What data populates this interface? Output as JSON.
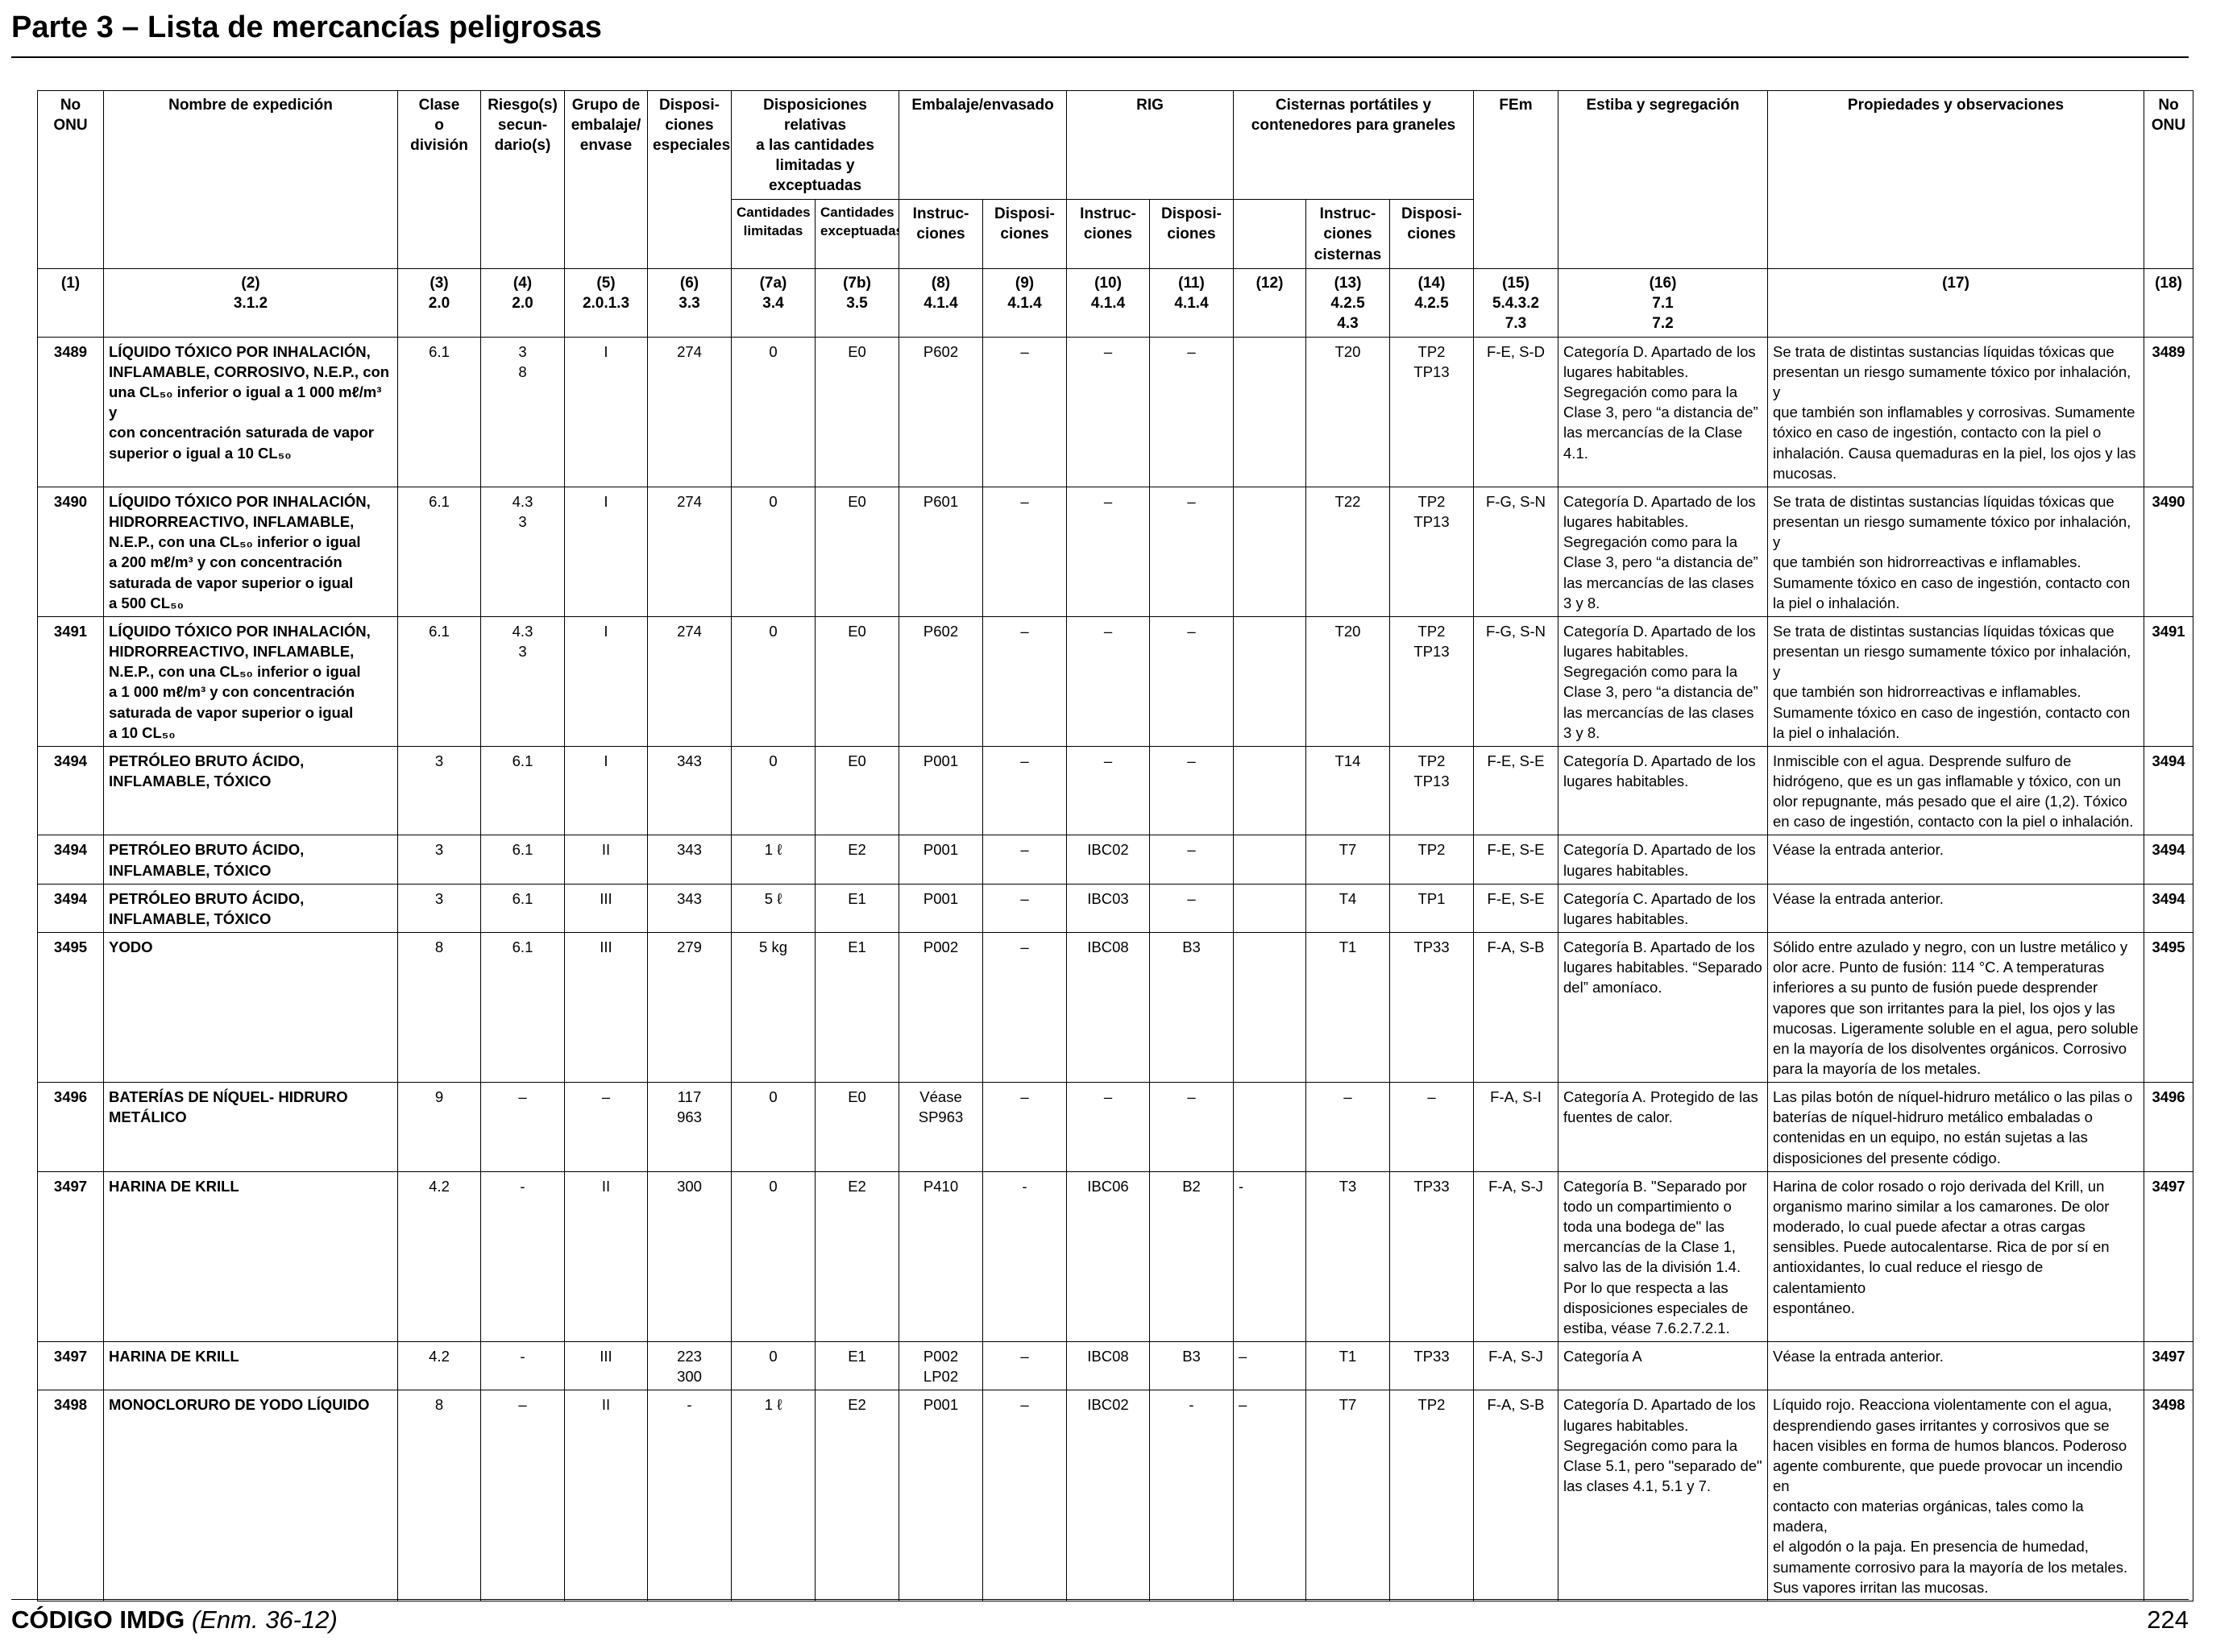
{
  "page": {
    "title": "Parte 3 – Lista de mercancías peligrosas"
  },
  "header": {
    "onu": "No\nONU",
    "name": "Nombre de expedición",
    "class": "Clase\no\ndivisión",
    "subrisk": "Riesgo(s)\nsecun-\ndario(s)",
    "pg": "Grupo de\nembalaje/\nenvase",
    "sp": "Disposi-\nciones\nespeciales",
    "limited": "Disposiciones relativas\na las cantidades\nlimitadas y exceptuadas",
    "limited_sub_a": "Cantidades\nlimitadas",
    "limited_sub_b": "Cantidades\nexceptuadas",
    "packing": "Embalaje/envasado",
    "packing_sub_a": "Instruc-\nciones",
    "packing_sub_b": "Disposi-\nciones",
    "rig": "RIG",
    "rig_sub_a": "Instruc-\nciones",
    "rig_sub_b": "Disposi-\nciones",
    "tanks": "Cisternas portátiles y\ncontenedores para graneles",
    "tanks_sub_a": "Instruc-\nciones\ncisternas",
    "tanks_sub_b": "Disposi-\nciones",
    "ems": "FEm",
    "stowage": "Estiba y segregación",
    "properties": "Propiedades y observaciones",
    "onu_right": "No\nONU"
  },
  "refs": [
    "(1)",
    "(2)\n3.1.2",
    "(3)\n2.0",
    "(4)\n2.0",
    "(5)\n2.0.1.3",
    "(6)\n3.3",
    "(7a)\n3.4",
    "(7b)\n3.5",
    "(8)\n4.1.4",
    "(9)\n4.1.4",
    "(10)\n4.1.4",
    "(11)\n4.1.4",
    "(12)",
    "(13)\n4.2.5\n4.3",
    "(14)\n4.2.5",
    "(15)\n5.4.3.2\n7.3",
    "(16)\n7.1\n7.2",
    "(17)",
    "(18)"
  ],
  "rows": [
    {
      "onu": "3489",
      "name": "LÍQUIDO TÓXICO POR INHALACIÓN,\nINFLAMABLE, CORROSIVO, N.E.P., con\nuna CL₅₀ inferior o igual a 1 000 mℓ/m³ y\ncon concentración saturada de vapor\nsuperior o igual a 10 CL₅₀",
      "class": "6.1",
      "subrisk": "3\n8",
      "pg": "I",
      "sp": "274",
      "lq": "0",
      "eq": "E0",
      "pi": "P602",
      "pp": "–",
      "ibc": "–",
      "ibcp": "–",
      "c12": "",
      "tank": "T20",
      "tankp": "TP2\nTP13",
      "ems": "F-E, S-D",
      "stowage": "Categoría D. Apartado de los\nlugares habitables.\nSegregación como para la\nClase 3, pero “a distancia de”\nlas mercancías de la Clase\n4.1.",
      "props": "Se trata de distintas sustancias líquidas tóxicas que\npresentan un riesgo sumamente tóxico por inhalación, y\nque también son inflamables y corrosivas. Sumamente\ntóxico en caso de ingestión, contacto con la piel o\ninhalación. Causa quemaduras en la piel, los ojos y las\nmucosas.",
      "onu_r": "3489"
    },
    {
      "onu": "3490",
      "name": "LÍQUIDO TÓXICO POR INHALACIÓN,\nHIDRORREACTIVO, INFLAMABLE,\nN.E.P., con una CL₅₀ inferior o igual\na 200 mℓ/m³ y con concentración\nsaturada de vapor superior o igual\na 500 CL₅₀",
      "class": "6.1",
      "subrisk": "4.3\n3",
      "pg": "I",
      "sp": "274",
      "lq": "0",
      "eq": "E0",
      "pi": "P601",
      "pp": "–",
      "ibc": "–",
      "ibcp": "–",
      "c12": "",
      "tank": "T22",
      "tankp": "TP2\nTP13",
      "ems": "F-G, S-N",
      "stowage": "Categoría D. Apartado de los\nlugares habitables.\nSegregación como para la\nClase 3, pero “a distancia de”\nlas mercancías de las clases\n3 y 8.",
      "props": "Se trata de distintas sustancias líquidas tóxicas que\npresentan un riesgo sumamente tóxico por inhalación, y\nque también son hidrorreactivas e inflamables.\nSumamente tóxico en caso de ingestión, contacto con\nla piel o inhalación.",
      "onu_r": "3490"
    },
    {
      "onu": "3491",
      "name": "LÍQUIDO TÓXICO POR INHALACIÓN,\nHIDRORREACTIVO, INFLAMABLE,\nN.E.P., con una CL₅₀ inferior o igual\na 1 000 mℓ/m³ y con concentración\nsaturada de vapor superior o igual\na 10 CL₅₀",
      "class": "6.1",
      "subrisk": "4.3\n3",
      "pg": "I",
      "sp": "274",
      "lq": "0",
      "eq": "E0",
      "pi": "P602",
      "pp": "–",
      "ibc": "–",
      "ibcp": "–",
      "c12": "",
      "tank": "T20",
      "tankp": "TP2\nTP13",
      "ems": "F-G, S-N",
      "stowage": "Categoría D. Apartado de los\nlugares habitables.\nSegregación como para la\nClase 3, pero “a distancia de”\nlas mercancías de las clases\n3 y 8.",
      "props": "Se trata de distintas sustancias líquidas tóxicas que\npresentan un riesgo sumamente tóxico por inhalación, y\nque también son hidrorreactivas e inflamables.\nSumamente tóxico en caso de ingestión, contacto con\nla piel o inhalación.",
      "onu_r": "3491"
    },
    {
      "onu": "3494",
      "name": "PETRÓLEO BRUTO ÁCIDO,\nINFLAMABLE, TÓXICO",
      "class": "3",
      "subrisk": "6.1",
      "pg": "I",
      "sp": "343",
      "lq": "0",
      "eq": "E0",
      "pi": "P001",
      "pp": "–",
      "ibc": "–",
      "ibcp": "–",
      "c12": "",
      "tank": "T14",
      "tankp": "TP2\nTP13",
      "ems": "F-E, S-E",
      "stowage": "Categoría D. Apartado de los\nlugares habitables.",
      "props": "Inmiscible con el agua. Desprende sulfuro de\nhidrógeno, que es un gas inflamable y tóxico, con un\nolor repugnante, más pesado que el aire (1,2). Tóxico\nen caso de ingestión, contacto con la piel o inhalación.",
      "onu_r": "3494"
    },
    {
      "onu": "3494",
      "name": "PETRÓLEO BRUTO ÁCIDO,\nINFLAMABLE, TÓXICO",
      "class": "3",
      "subrisk": "6.1",
      "pg": "II",
      "sp": "343",
      "lq": "1 ℓ",
      "eq": "E2",
      "pi": "P001",
      "pp": "–",
      "ibc": "IBC02",
      "ibcp": "–",
      "c12": "",
      "tank": "T7",
      "tankp": "TP2",
      "ems": "F-E, S-E",
      "stowage": "Categoría D. Apartado de los\nlugares habitables.",
      "props": "Véase la entrada anterior.",
      "onu_r": "3494"
    },
    {
      "onu": "3494",
      "name": "PETRÓLEO BRUTO ÁCIDO,\nINFLAMABLE, TÓXICO",
      "class": "3",
      "subrisk": "6.1",
      "pg": "III",
      "sp": "343",
      "lq": "5 ℓ",
      "eq": "E1",
      "pi": "P001",
      "pp": "–",
      "ibc": "IBC03",
      "ibcp": "–",
      "c12": "",
      "tank": "T4",
      "tankp": "TP1",
      "ems": "F-E, S-E",
      "stowage": "Categoría C. Apartado de los\nlugares habitables.",
      "props": "Véase la entrada anterior.",
      "onu_r": "3494"
    },
    {
      "onu": "3495",
      "name": "YODO",
      "class": "8",
      "subrisk": "6.1",
      "pg": "III",
      "sp": "279",
      "lq": "5 kg",
      "eq": "E1",
      "pi": "P002",
      "pp": "–",
      "ibc": "IBC08",
      "ibcp": "B3",
      "c12": "",
      "tank": "T1",
      "tankp": "TP33",
      "ems": "F-A, S-B",
      "stowage": "Categoría B. Apartado de los\nlugares habitables. “Separado\ndel” amoníaco.",
      "props": "Sólido entre azulado y negro, con un lustre metálico y\nolor acre. Punto de fusión: 114 °C. A temperaturas\ninferiores a su punto de fusión puede desprender\nvapores que son irritantes para la piel, los ojos y las\nmucosas. Ligeramente soluble en el agua, pero soluble\nen la mayoría de los disolventes orgánicos. Corrosivo\npara la mayoría de los metales.",
      "onu_r": "3495"
    },
    {
      "onu": "3496",
      "name": "BATERÍAS DE NÍQUEL- HIDRURO\nMETÁLICO",
      "class": "9",
      "subrisk": "–",
      "pg": "–",
      "sp": "117\n963",
      "lq": "0",
      "eq": "E0",
      "pi": "Véase\nSP963",
      "pp": "–",
      "ibc": "–",
      "ibcp": "–",
      "c12": "",
      "tank": "–",
      "tankp": "–",
      "ems": "F-A, S-I",
      "stowage": "Categoría A. Protegido de las\nfuentes de calor.",
      "props": "Las pilas botón de níquel-hidruro metálico o las pilas o\nbaterías de níquel-hidruro metálico embaladas o\ncontenidas en un equipo, no están sujetas a las\ndisposiciones del presente código.",
      "onu_r": "3496"
    },
    {
      "onu": "3497",
      "name": "HARINA DE KRILL",
      "class": "4.2",
      "subrisk": "-",
      "pg": "II",
      "sp": "300",
      "lq": "0",
      "eq": "E2",
      "pi": "P410",
      "pp": "-",
      "ibc": "IBC06",
      "ibcp": "B2",
      "c12": "-",
      "tank": "T3",
      "tankp": "TP33",
      "ems": "F-A, S-J",
      "stowage": "Categoría B. \"Separado por\ntodo un compartimiento o\ntoda una bodega de\" las\nmercancías de la Clase 1,\nsalvo las de la división 1.4.\nPor lo que respecta a las\ndisposiciones especiales de\nestiba, véase 7.6.2.7.2.1.",
      "props": "Harina de color rosado o rojo derivada del Krill, un\norganismo marino similar a los camarones. De olor\nmoderado, lo cual puede afectar a otras cargas\nsensibles. Puede autocalentarse. Rica de por sí en\nantioxidantes, lo cual reduce el riesgo de calentamiento\nespontáneo.",
      "onu_r": "3497"
    },
    {
      "onu": "3497",
      "name": "HARINA DE KRILL",
      "class": "4.2",
      "subrisk": "-",
      "pg": "III",
      "sp": "223\n300",
      "lq": "0",
      "eq": "E1",
      "pi": "P002\nLP02",
      "pp": "–",
      "ibc": "IBC08",
      "ibcp": "B3",
      "c12": "–",
      "tank": "T1",
      "tankp": "TP33",
      "ems": "F-A, S-J",
      "stowage": "Categoría A",
      "props": "Véase la entrada anterior.",
      "onu_r": "3497"
    },
    {
      "onu": "3498",
      "name": "MONOCLORURO DE YODO LÍQUIDO",
      "class": "8",
      "subrisk": "–",
      "pg": "II",
      "sp": "-",
      "lq": "1 ℓ",
      "eq": "E2",
      "pi": "P001",
      "pp": "–",
      "ibc": "IBC02",
      "ibcp": "-",
      "c12": "–",
      "tank": "T7",
      "tankp": "TP2",
      "ems": "F-A, S-B",
      "stowage": "Categoría D. Apartado de los\nlugares habitables.\nSegregación como para la\nClase 5.1, pero \"separado de\"\nlas clases 4.1, 5.1 y 7.",
      "props": "Líquido rojo. Reacciona violentamente con el agua,\ndesprendiendo gases irritantes y corrosivos que se\nhacen visibles en forma de humos blancos. Poderoso\nagente comburente, que puede provocar un incendio en\ncontacto con materias orgánicas, tales como la madera,\nel algodón o la paja. En presencia de humedad,\nsumamente corrosivo para la mayoría de los metales.\nSus vapores irritan las mucosas.",
      "onu_r": "3498"
    }
  ],
  "footer": {
    "code": "CÓDIGO IMDG",
    "edition": "(Enm. 36-12)",
    "page_number": "224"
  }
}
